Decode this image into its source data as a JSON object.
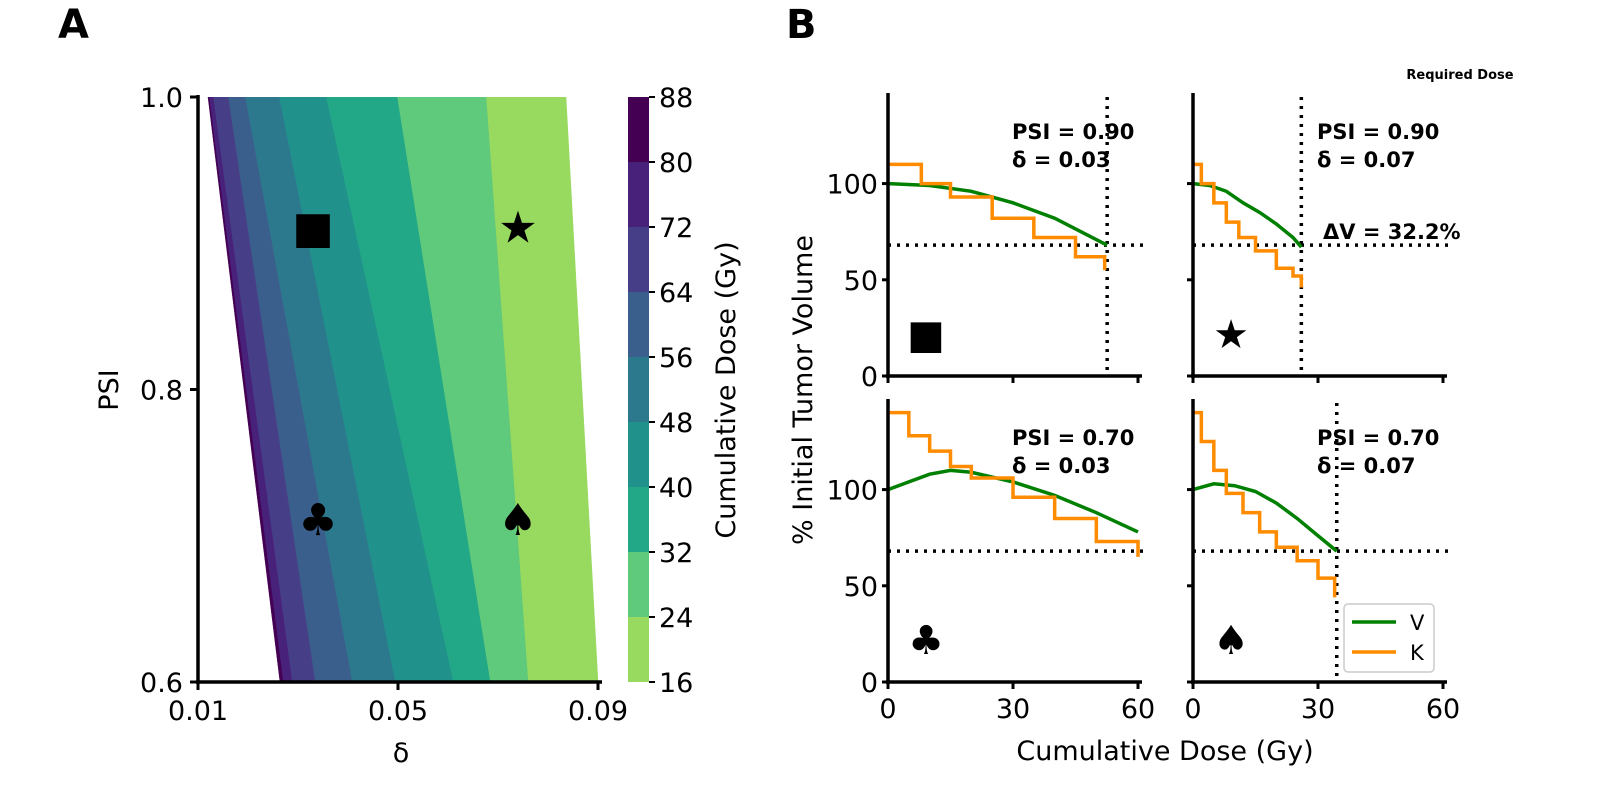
{
  "panels": {
    "a": "A",
    "b": "B"
  },
  "heatmap": {
    "xlabel": "δ",
    "ylabel": "PSI",
    "xticks": [
      "0.01",
      "0.05",
      "0.09"
    ],
    "yticks": [
      "0.6",
      "0.8",
      "1.0"
    ],
    "xlim": [
      0.01,
      0.09
    ],
    "ylim": [
      0.6,
      1.0
    ],
    "colorbar_label": "Cumulative Dose (Gy)",
    "colorbar_ticks": [
      "16",
      "24",
      "32",
      "40",
      "48",
      "56",
      "64",
      "72",
      "80",
      "88"
    ],
    "levels": [
      16,
      24,
      32,
      40,
      48,
      56,
      64,
      72,
      80,
      88
    ],
    "level_colors": [
      "#98d95f",
      "#5fc97c",
      "#22a886",
      "#21918c",
      "#2c798e",
      "#3b5f8c",
      "#463f87",
      "#48217a",
      "#440154"
    ],
    "markers": [
      {
        "symbol": "■",
        "delta": 0.033,
        "psi": 0.91
      },
      {
        "symbol": "★",
        "delta": 0.074,
        "psi": 0.91
      },
      {
        "symbol": "♣",
        "delta": 0.034,
        "psi": 0.71
      },
      {
        "symbol": "♠",
        "delta": 0.074,
        "psi": 0.71
      }
    ],
    "marker_color": "#ff0000"
  },
  "curves": {
    "xlabel": "Cumulative Dose (Gy)",
    "ylabel": "% Initial Tumor Volume",
    "xticks": [
      "0",
      "30",
      "60"
    ],
    "yticks": [
      "0",
      "50",
      "100"
    ],
    "xlim": [
      0,
      60
    ],
    "ylim": [
      0,
      145
    ],
    "required_dose_label": "Required Dose",
    "legend": [
      {
        "label": "V",
        "color": "#008000"
      },
      {
        "label": "K",
        "color": "#ff8c00"
      }
    ],
    "subplots": [
      {
        "psi_text": "PSI = 0.90",
        "delta_text": "δ = 0.03",
        "symbol": "■",
        "hline": 68,
        "vline": 52.6,
        "delta_v_text": "",
        "V": [
          [
            0,
            100
          ],
          [
            10,
            99
          ],
          [
            20,
            96
          ],
          [
            30,
            90
          ],
          [
            40,
            82
          ],
          [
            52.6,
            68
          ]
        ],
        "K": [
          [
            0,
            110
          ],
          [
            8,
            100
          ],
          [
            15,
            93
          ],
          [
            25,
            82
          ],
          [
            35,
            72
          ],
          [
            45,
            62
          ],
          [
            52,
            55
          ]
        ]
      },
      {
        "psi_text": "PSI = 0.90",
        "delta_text": "δ = 0.07",
        "symbol": "★",
        "hline": 68,
        "vline": 26,
        "delta_v_text": "ΔV = 32.2%",
        "V": [
          [
            0,
            100
          ],
          [
            4,
            99
          ],
          [
            8,
            96
          ],
          [
            12,
            90
          ],
          [
            16,
            85
          ],
          [
            20,
            79
          ],
          [
            24,
            72
          ],
          [
            26,
            67
          ]
        ],
        "K": [
          [
            0,
            110
          ],
          [
            2,
            100
          ],
          [
            5,
            90
          ],
          [
            8,
            80
          ],
          [
            11,
            72
          ],
          [
            15,
            65
          ],
          [
            20,
            56
          ],
          [
            24,
            52
          ],
          [
            26,
            46
          ]
        ]
      },
      {
        "psi_text": "PSI = 0.70",
        "delta_text": "δ = 0.03",
        "symbol": "♣",
        "hline": 68,
        "vline": null,
        "delta_v_text": "",
        "V": [
          [
            0,
            100
          ],
          [
            5,
            104
          ],
          [
            10,
            108
          ],
          [
            15,
            110
          ],
          [
            20,
            109
          ],
          [
            30,
            104
          ],
          [
            40,
            97
          ],
          [
            50,
            88
          ],
          [
            60,
            78
          ]
        ],
        "K": [
          [
            0,
            140
          ],
          [
            5,
            128
          ],
          [
            10,
            120
          ],
          [
            15,
            112
          ],
          [
            20,
            106
          ],
          [
            30,
            96
          ],
          [
            40,
            85
          ],
          [
            50,
            73
          ],
          [
            60,
            65
          ]
        ]
      },
      {
        "psi_text": "PSI = 0.70",
        "delta_text": "δ = 0.07",
        "symbol": "♠",
        "hline": 68,
        "vline": 34.5,
        "delta_v_text": "",
        "V": [
          [
            0,
            100
          ],
          [
            5,
            103
          ],
          [
            10,
            102
          ],
          [
            15,
            99
          ],
          [
            20,
            93
          ],
          [
            25,
            85
          ],
          [
            30,
            76
          ],
          [
            34.5,
            68
          ]
        ],
        "K": [
          [
            0,
            140
          ],
          [
            2,
            125
          ],
          [
            5,
            110
          ],
          [
            8,
            98
          ],
          [
            12,
            88
          ],
          [
            16,
            78
          ],
          [
            20,
            70
          ],
          [
            25,
            63
          ],
          [
            30,
            54
          ],
          [
            34,
            44
          ]
        ]
      }
    ]
  },
  "chart_data": [
    {
      "type": "heatmap",
      "title": "",
      "xlabel": "δ",
      "ylabel": "PSI",
      "xlim": [
        0.01,
        0.09
      ],
      "ylim": [
        0.6,
        1.0
      ],
      "colorbar": "Cumulative Dose (Gy)",
      "levels": [
        16,
        24,
        32,
        40,
        48,
        56,
        64,
        72,
        80,
        88
      ]
    },
    {
      "type": "line",
      "xlabel": "Cumulative Dose (Gy)",
      "ylabel": "% Initial Tumor Volume",
      "xlim": [
        0,
        60
      ],
      "ylim": [
        0,
        145
      ],
      "series": [
        {
          "name": "V"
        },
        {
          "name": "K"
        }
      ],
      "panels": [
        "PSI = 0.90, δ = 0.03",
        "PSI = 0.90, δ = 0.07",
        "PSI = 0.70, δ = 0.03",
        "PSI = 0.70, δ = 0.07"
      ]
    }
  ]
}
